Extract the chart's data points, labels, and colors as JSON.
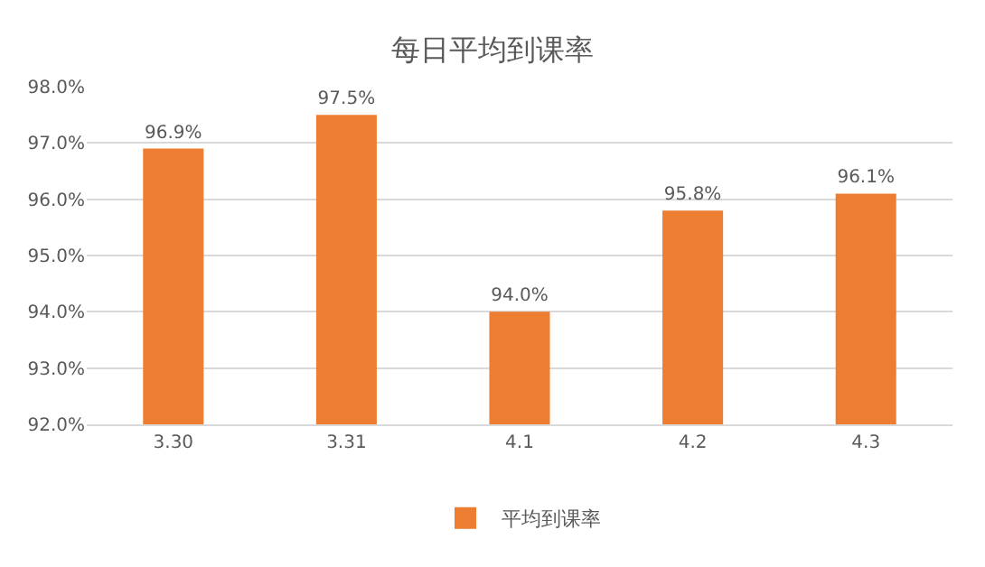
{
  "chart_data": {
    "type": "bar",
    "title": "每日平均到课率",
    "categories": [
      "3.30",
      "3.31",
      "4.1",
      "4.2",
      "4.3"
    ],
    "series": [
      {
        "name": "平均到课率",
        "color": "#ed7d31",
        "values": [
          96.9,
          97.5,
          94.0,
          95.8,
          96.1
        ],
        "value_labels": [
          "96.9%",
          "97.5%",
          "94.0%",
          "95.8%",
          "96.1%"
        ]
      }
    ],
    "ylim": [
      92,
      98
    ],
    "yticks": [
      {
        "value": 92,
        "label": "92.0%"
      },
      {
        "value": 93,
        "label": "93.0%"
      },
      {
        "value": 94,
        "label": "94.0%"
      },
      {
        "value": 95,
        "label": "95.0%"
      },
      {
        "value": 96,
        "label": "96.0%"
      },
      {
        "value": 97,
        "label": "97.0%"
      },
      {
        "value": 98,
        "label": "98.0%"
      }
    ],
    "grid": "y",
    "legend": "bottom"
  }
}
